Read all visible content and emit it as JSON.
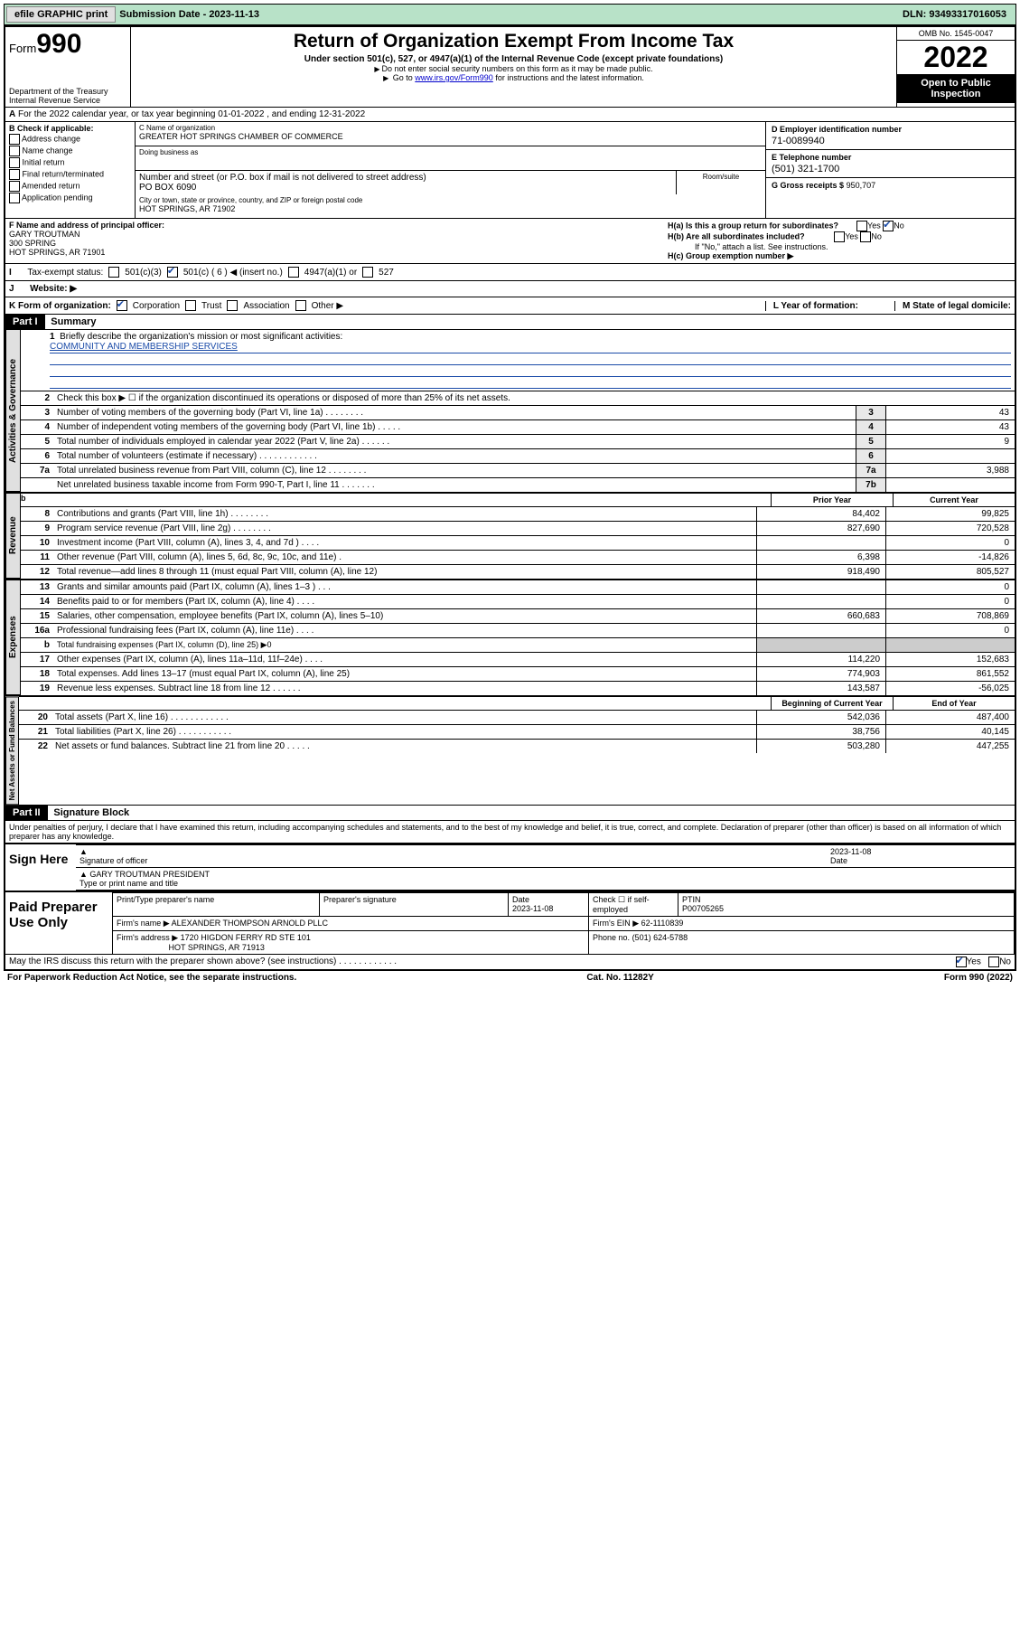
{
  "topbar": {
    "efile": "efile GRAPHIC print",
    "submission_label": "Submission Date - 2023-11-13",
    "dln": "DLN: 93493317016053"
  },
  "header": {
    "form_label": "Form",
    "form_number": "990",
    "dept": "Department of the Treasury",
    "irs": "Internal Revenue Service",
    "title": "Return of Organization Exempt From Income Tax",
    "subtitle": "Under section 501(c), 527, or 4947(a)(1) of the Internal Revenue Code (except private foundations)",
    "note1": "Do not enter social security numbers on this form as it may be made public.",
    "note2_pre": "Go to ",
    "note2_link": "www.irs.gov/Form990",
    "note2_post": " for instructions and the latest information.",
    "omb": "OMB No. 1545-0047",
    "year": "2022",
    "open": "Open to Public Inspection"
  },
  "line_a": "For the 2022 calendar year, or tax year beginning 01-01-2022   , and ending 12-31-2022",
  "section_b": {
    "header": "B Check if applicable:",
    "items": [
      "Address change",
      "Name change",
      "Initial return",
      "Final return/terminated",
      "Amended return",
      "Application pending"
    ]
  },
  "section_c": {
    "name_label": "C Name of organization",
    "name": "GREATER HOT SPRINGS CHAMBER OF COMMERCE",
    "dba_label": "Doing business as",
    "dba": "",
    "street_label": "Number and street (or P.O. box if mail is not delivered to street address)",
    "room_label": "Room/suite",
    "street": "PO BOX 6090",
    "city_label": "City or town, state or province, country, and ZIP or foreign postal code",
    "city": "HOT SPRINGS, AR  71902"
  },
  "section_d": {
    "ein_label": "D Employer identification number",
    "ein": "71-0089940",
    "phone_label": "E Telephone number",
    "phone": "(501) 321-1700",
    "gross_label": "G Gross receipts $",
    "gross": "950,707"
  },
  "section_f": {
    "label": "F  Name and address of principal officer:",
    "name": "GARY TROUTMAN",
    "addr1": "300 SPRING",
    "addr2": "HOT SPRINGS, AR  71901"
  },
  "section_h": {
    "ha": "H(a)  Is this a group return for subordinates?",
    "hb": "H(b)  Are all subordinates included?",
    "hb_note": "If \"No,\" attach a list. See instructions.",
    "hc": "H(c)  Group exemption number ▶"
  },
  "row_i": {
    "label": "Tax-exempt status:",
    "opts": [
      "501(c)(3)",
      "501(c) ( 6 ) ◀ (insert no.)",
      "4947(a)(1) or",
      "527"
    ]
  },
  "row_j": {
    "label": "Website: ▶",
    "value": ""
  },
  "row_k": {
    "label": "K Form of organization:",
    "opts": [
      "Corporation",
      "Trust",
      "Association",
      "Other ▶"
    ],
    "l_label": "L Year of formation:",
    "l_val": "",
    "m_label": "M State of legal domicile:",
    "m_val": ""
  },
  "part1": {
    "header": "Part I",
    "title": "Summary",
    "line1_label": "Briefly describe the organization's mission or most significant activities:",
    "mission": "COMMUNITY AND MEMBERSHIP SERVICES",
    "line2": "Check this box ▶ ☐  if the organization discontinued its operations or disposed of more than 25% of its net assets.",
    "governance_tab": "Activities & Governance",
    "revenue_tab": "Revenue",
    "expenses_tab": "Expenses",
    "netassets_tab": "Net Assets or Fund Balances",
    "prior_year": "Prior Year",
    "current_year": "Current Year",
    "boy": "Beginning of Current Year",
    "eoy": "End of Year",
    "lines_single": [
      {
        "n": "3",
        "t": "Number of voting members of the governing body (Part VI, line 1a)   .    .    .    .    .    .    .    .",
        "box": "3",
        "v": "43"
      },
      {
        "n": "4",
        "t": "Number of independent voting members of the governing body (Part VI, line 1b)   .    .    .    .    .",
        "box": "4",
        "v": "43"
      },
      {
        "n": "5",
        "t": "Total number of individuals employed in calendar year 2022 (Part V, line 2a)   .    .    .    .    .    .",
        "box": "5",
        "v": "9"
      },
      {
        "n": "6",
        "t": "Total number of volunteers (estimate if necessary)   .    .    .    .    .    .    .    .    .    .    .    .",
        "box": "6",
        "v": ""
      },
      {
        "n": "7a",
        "t": "Total unrelated business revenue from Part VIII, column (C), line 12   .    .    .    .    .    .    .    .",
        "box": "7a",
        "v": "3,988"
      },
      {
        "n": "",
        "t": "Net unrelated business taxable income from Form 990-T, Part I, line 11   .    .    .    .    .    .    .",
        "box": "7b",
        "v": ""
      }
    ],
    "lines_revenue": [
      {
        "n": "8",
        "t": "Contributions and grants (Part VIII, line 1h)   .    .    .    .    .    .    .    .",
        "py": "84,402",
        "cy": "99,825"
      },
      {
        "n": "9",
        "t": "Program service revenue (Part VIII, line 2g)   .    .    .    .    .    .    .    .",
        "py": "827,690",
        "cy": "720,528"
      },
      {
        "n": "10",
        "t": "Investment income (Part VIII, column (A), lines 3, 4, and 7d )   .    .    .    .",
        "py": "",
        "cy": "0"
      },
      {
        "n": "11",
        "t": "Other revenue (Part VIII, column (A), lines 5, 6d, 8c, 9c, 10c, and 11e)   .",
        "py": "6,398",
        "cy": "-14,826"
      },
      {
        "n": "12",
        "t": "Total revenue—add lines 8 through 11 (must equal Part VIII, column (A), line 12)",
        "py": "918,490",
        "cy": "805,527"
      }
    ],
    "lines_expenses": [
      {
        "n": "13",
        "t": "Grants and similar amounts paid (Part IX, column (A), lines 1–3 )   .    .    .",
        "py": "",
        "cy": "0"
      },
      {
        "n": "14",
        "t": "Benefits paid to or for members (Part IX, column (A), line 4)   .    .    .    .",
        "py": "",
        "cy": "0"
      },
      {
        "n": "15",
        "t": "Salaries, other compensation, employee benefits (Part IX, column (A), lines 5–10)",
        "py": "660,683",
        "cy": "708,869"
      },
      {
        "n": "16a",
        "t": "Professional fundraising fees (Part IX, column (A), line 11e)   .    .    .    .",
        "py": "",
        "cy": "0"
      },
      {
        "n": "b",
        "t": "Total fundraising expenses (Part IX, column (D), line 25) ▶0",
        "py": null,
        "cy": null
      },
      {
        "n": "17",
        "t": "Other expenses (Part IX, column (A), lines 11a–11d, 11f–24e)   .    .    .    .",
        "py": "114,220",
        "cy": "152,683"
      },
      {
        "n": "18",
        "t": "Total expenses. Add lines 13–17 (must equal Part IX, column (A), line 25)",
        "py": "774,903",
        "cy": "861,552"
      },
      {
        "n": "19",
        "t": "Revenue less expenses. Subtract line 18 from line 12   .    .    .    .    .    .",
        "py": "143,587",
        "cy": "-56,025"
      }
    ],
    "lines_net": [
      {
        "n": "20",
        "t": "Total assets (Part X, line 16)   .    .    .    .    .    .    .    .    .    .    .    .",
        "py": "542,036",
        "cy": "487,400"
      },
      {
        "n": "21",
        "t": "Total liabilities (Part X, line 26)   .    .    .    .    .    .    .    .    .    .    .",
        "py": "38,756",
        "cy": "40,145"
      },
      {
        "n": "22",
        "t": "Net assets or fund balances. Subtract line 21 from line 20   .    .    .    .    .",
        "py": "503,280",
        "cy": "447,255"
      }
    ]
  },
  "part2": {
    "header": "Part II",
    "title": "Signature Block",
    "declare": "Under penalties of perjury, I declare that I have examined this return, including accompanying schedules and statements, and to the best of my knowledge and belief, it is true, correct, and complete. Declaration of preparer (other than officer) is based on all information of which preparer has any knowledge.",
    "sign_here": "Sign Here",
    "sig_officer": "Signature of officer",
    "sig_date": "2023-11-08",
    "date_label": "Date",
    "officer_name": "GARY TROUTMAN  PRESIDENT",
    "type_name": "Type or print name and title",
    "paid": "Paid Preparer Use Only",
    "prep_name_label": "Print/Type preparer's name",
    "prep_name": "",
    "prep_sig_label": "Preparer's signature",
    "prep_date_label": "Date",
    "prep_date": "2023-11-08",
    "check_self": "Check ☐ if self-employed",
    "ptin_label": "PTIN",
    "ptin": "P00705265",
    "firm_name_label": "Firm's name    ▶",
    "firm_name": "ALEXANDER THOMPSON ARNOLD PLLC",
    "firm_ein_label": "Firm's EIN ▶",
    "firm_ein": "62-1110839",
    "firm_addr_label": "Firm's address ▶",
    "firm_addr1": "1720 HIGDON FERRY RD STE 101",
    "firm_addr2": "HOT SPRINGS, AR  71913",
    "phone_label": "Phone no.",
    "phone": "(501) 624-5788",
    "may_irs": "May the IRS discuss this return with the preparer shown above? (see instructions)   .    .    .    .    .    .    .    .    .    .    .    ."
  },
  "footer": {
    "paperwork": "For Paperwork Reduction Act Notice, see the separate instructions.",
    "cat": "Cat. No. 11282Y",
    "form": "Form 990 (2022)"
  }
}
